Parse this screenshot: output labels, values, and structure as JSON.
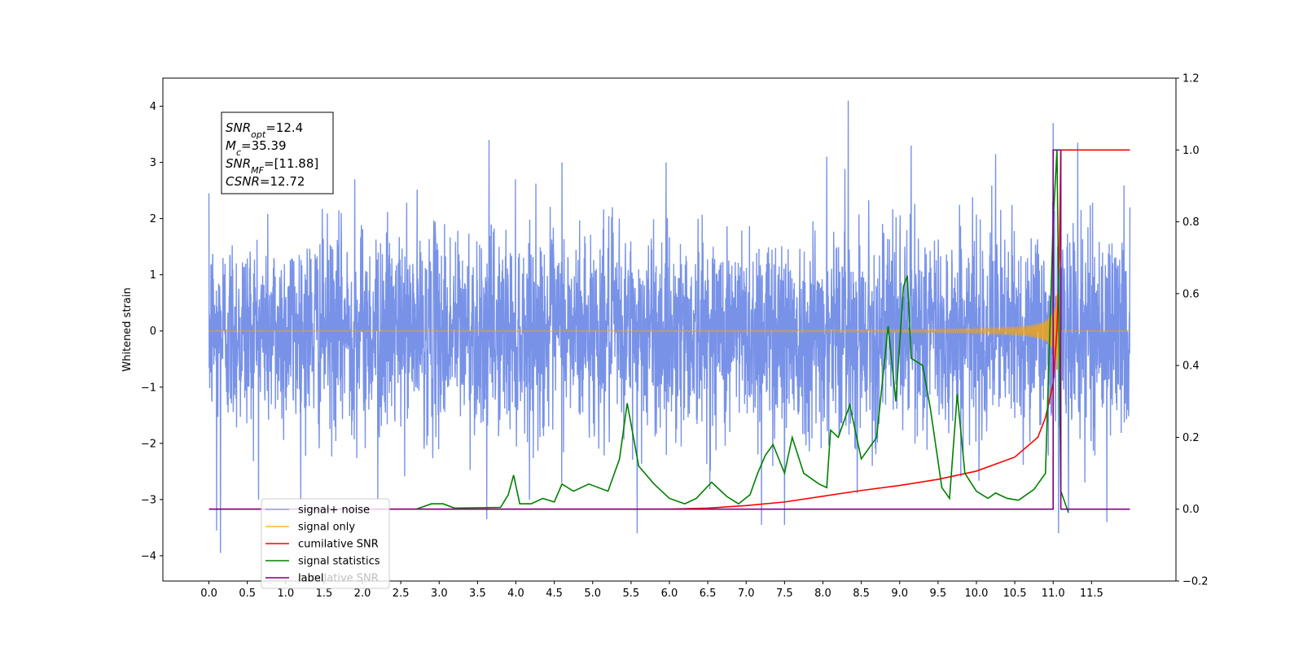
{
  "chart_data": {
    "type": "line",
    "title": "",
    "xlabel": "",
    "ylabel": "Whitened strain",
    "ylabel_right": "",
    "xlim": [
      -0.6,
      12.6
    ],
    "ylim": [
      -4.45,
      4.5
    ],
    "ylim_right": [
      -0.2,
      1.2
    ],
    "x_ticks": [
      0.0,
      0.5,
      1.0,
      1.5,
      2.0,
      2.5,
      3.0,
      3.5,
      4.0,
      4.5,
      5.0,
      5.5,
      6.0,
      6.5,
      7.0,
      7.5,
      8.0,
      8.5,
      9.0,
      9.5,
      10.0,
      10.5,
      11.0,
      11.5
    ],
    "x_tick_labels": [
      "0.0",
      "0.5",
      "1.0",
      "1.5",
      "2.0",
      "2.5",
      "3.0",
      "3.5",
      "4.0",
      "4.5",
      "5.0",
      "5.5",
      "6.0",
      "6.5",
      "7.0",
      "7.5",
      "8.0",
      "8.5",
      "9.0",
      "9.5",
      "10.0",
      "10.5",
      "11.0",
      "11.5"
    ],
    "y_ticks": [
      -4,
      -3,
      -2,
      -1,
      0,
      1,
      2,
      3,
      4
    ],
    "y_tick_labels": [
      "−4",
      "−3",
      "−2",
      "−1",
      "0",
      "1",
      "2",
      "3",
      "4"
    ],
    "y_right_ticks": [
      -0.2,
      0.0,
      0.2,
      0.4,
      0.6,
      0.8,
      1.0,
      1.2
    ],
    "y_right_tick_labels": [
      "−0.2",
      "0.0",
      "0.2",
      "0.4",
      "0.6",
      "0.8",
      "1.0",
      "1.2"
    ],
    "grid": false,
    "legend_placement": "lower-left",
    "annotation": {
      "lines": [
        {
          "main": "SNR",
          "sub": "opt",
          "rest": "=12.4"
        },
        {
          "main": "M",
          "sub": "c",
          "rest": "=35.39"
        },
        {
          "main": "SNR",
          "sub": "MF",
          "rest": "=[11.88]"
        },
        {
          "main": "CSNR",
          "sub": "",
          "rest": "=12.72"
        }
      ]
    },
    "series": [
      {
        "name": "signal+ noise",
        "axis": "left",
        "color": "#7892e8",
        "x_range": [
          0.0,
          12.0
        ],
        "approx_amplitude": [
          -2.2,
          2.2
        ],
        "peak_points": [
          [
            0.0,
            2.45
          ],
          [
            0.1,
            -3.55
          ],
          [
            0.15,
            -3.95
          ],
          [
            1.9,
            2.7
          ],
          [
            2.2,
            -3.0
          ],
          [
            3.65,
            3.4
          ],
          [
            3.62,
            -3.35
          ],
          [
            4.6,
            3.0
          ],
          [
            5.58,
            -3.6
          ],
          [
            7.2,
            -3.45
          ],
          [
            7.5,
            -3.45
          ],
          [
            8.05,
            3.1
          ],
          [
            8.33,
            4.1
          ],
          [
            9.15,
            3.3
          ],
          [
            10.25,
            3.15
          ],
          [
            11.0,
            3.7
          ],
          [
            11.07,
            -3.6
          ],
          [
            11.32,
            3.35
          ],
          [
            11.2,
            -3.2
          ],
          [
            11.7,
            -3.4
          ],
          [
            12.0,
            2.2
          ]
        ]
      },
      {
        "name": "signal only",
        "axis": "left",
        "color": "#ffa500",
        "x_range": [
          0.0,
          12.0
        ],
        "chirp_end": 11.08,
        "peak_amplitude": 0.7
      },
      {
        "name": "cumilative SNR",
        "axis": "right",
        "color": "#ff0000",
        "points": [
          [
            0.0,
            0.0
          ],
          [
            6.0,
            0.0
          ],
          [
            6.5,
            0.003
          ],
          [
            7.0,
            0.01
          ],
          [
            7.5,
            0.02
          ],
          [
            8.0,
            0.036
          ],
          [
            8.5,
            0.052
          ],
          [
            9.0,
            0.066
          ],
          [
            9.5,
            0.083
          ],
          [
            10.0,
            0.106
          ],
          [
            10.5,
            0.145
          ],
          [
            10.8,
            0.2
          ],
          [
            10.9,
            0.255
          ],
          [
            11.0,
            0.35
          ],
          [
            11.05,
            0.5
          ],
          [
            11.08,
            0.7
          ],
          [
            11.1,
            1.0
          ],
          [
            12.0,
            1.0
          ]
        ]
      },
      {
        "name": "signal statistics",
        "axis": "right",
        "color": "#008000",
        "points": [
          [
            2.7,
            0.0
          ],
          [
            2.9,
            0.015
          ],
          [
            3.05,
            0.015
          ],
          [
            3.2,
            0.003
          ],
          [
            3.8,
            0.005
          ],
          [
            3.9,
            0.04
          ],
          [
            3.97,
            0.095
          ],
          [
            4.05,
            0.015
          ],
          [
            4.2,
            0.015
          ],
          [
            4.35,
            0.03
          ],
          [
            4.5,
            0.02
          ],
          [
            4.6,
            0.07
          ],
          [
            4.75,
            0.05
          ],
          [
            4.95,
            0.07
          ],
          [
            5.2,
            0.05
          ],
          [
            5.35,
            0.14
          ],
          [
            5.45,
            0.295
          ],
          [
            5.6,
            0.12
          ],
          [
            5.8,
            0.07
          ],
          [
            6.0,
            0.03
          ],
          [
            6.2,
            0.015
          ],
          [
            6.35,
            0.03
          ],
          [
            6.55,
            0.075
          ],
          [
            6.75,
            0.035
          ],
          [
            6.9,
            0.015
          ],
          [
            7.05,
            0.04
          ],
          [
            7.15,
            0.1
          ],
          [
            7.25,
            0.15
          ],
          [
            7.35,
            0.18
          ],
          [
            7.5,
            0.1
          ],
          [
            7.6,
            0.2
          ],
          [
            7.75,
            0.1
          ],
          [
            7.95,
            0.07
          ],
          [
            8.05,
            0.06
          ],
          [
            8.1,
            0.22
          ],
          [
            8.2,
            0.2
          ],
          [
            8.35,
            0.29
          ],
          [
            8.5,
            0.14
          ],
          [
            8.7,
            0.2
          ],
          [
            8.85,
            0.51
          ],
          [
            8.95,
            0.3
          ],
          [
            9.05,
            0.62
          ],
          [
            9.1,
            0.65
          ],
          [
            9.15,
            0.42
          ],
          [
            9.3,
            0.4
          ],
          [
            9.4,
            0.28
          ],
          [
            9.55,
            0.06
          ],
          [
            9.65,
            0.03
          ],
          [
            9.75,
            0.32
          ],
          [
            9.85,
            0.1
          ],
          [
            10.0,
            0.05
          ],
          [
            10.15,
            0.03
          ],
          [
            10.25,
            0.045
          ],
          [
            10.4,
            0.03
          ],
          [
            10.55,
            0.025
          ],
          [
            10.75,
            0.055
          ],
          [
            10.9,
            0.1
          ],
          [
            11.0,
            0.8
          ],
          [
            11.05,
            1.0
          ],
          [
            11.1,
            0.05
          ],
          [
            11.2,
            -0.01
          ]
        ]
      },
      {
        "name": "label",
        "axis": "right",
        "color": "#800080",
        "points": [
          [
            0.0,
            0.0
          ],
          [
            11.0,
            0.0
          ],
          [
            11.0,
            1.0
          ],
          [
            11.1,
            1.0
          ],
          [
            11.1,
            0.0
          ],
          [
            12.0,
            0.0
          ]
        ]
      },
      {
        "name": "cumilative SNR",
        "axis": "right",
        "color": "#bfbfbf",
        "legend_only": true
      }
    ]
  }
}
